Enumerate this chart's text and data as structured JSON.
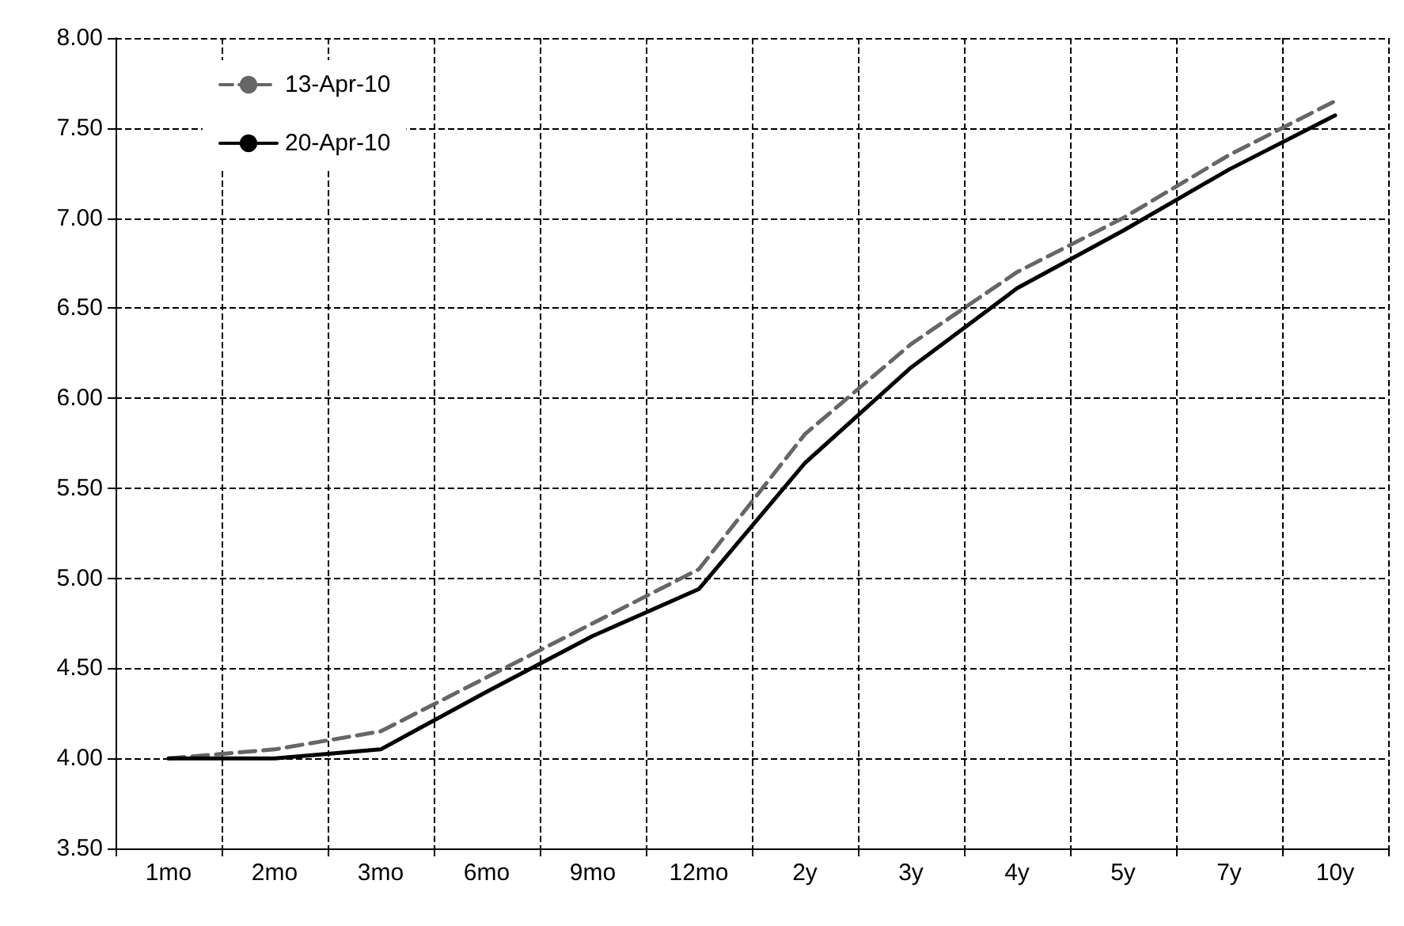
{
  "chart_data": {
    "type": "line",
    "categories": [
      "1mo",
      "2mo",
      "3mo",
      "6mo",
      "9mo",
      "12mo",
      "2y",
      "3y",
      "4y",
      "5y",
      "7y",
      "10y"
    ],
    "series": [
      {
        "name": "13-Apr-10",
        "color": "#666666",
        "line_style": "dashed",
        "values": [
          4.0,
          4.05,
          4.15,
          4.45,
          4.75,
          5.05,
          5.8,
          6.3,
          6.7,
          7.0,
          7.35,
          7.65
        ]
      },
      {
        "name": "20-Apr-10",
        "color": "#000000",
        "line_style": "solid",
        "values": [
          4.0,
          4.0,
          4.05,
          4.37,
          4.68,
          4.94,
          5.64,
          6.17,
          6.61,
          6.93,
          7.27,
          7.57
        ]
      }
    ],
    "ylim": [
      3.5,
      8
    ],
    "yticks": [
      {
        "value": 3.5,
        "label": "3.50"
      },
      {
        "value": 4,
        "label": "4.00"
      },
      {
        "value": 4.5,
        "label": "4.50"
      },
      {
        "value": 5,
        "label": "5.00"
      },
      {
        "value": 5.5,
        "label": "5.50"
      },
      {
        "value": 6,
        "label": "6.00"
      },
      {
        "value": 6.5,
        "label": "6.50"
      },
      {
        "value": 7,
        "label": "7.00"
      },
      {
        "value": 7.5,
        "label": "7.50"
      },
      {
        "value": 8,
        "label": "8.00"
      }
    ],
    "grid": true,
    "legend": "top left",
    "marker": "none"
  }
}
